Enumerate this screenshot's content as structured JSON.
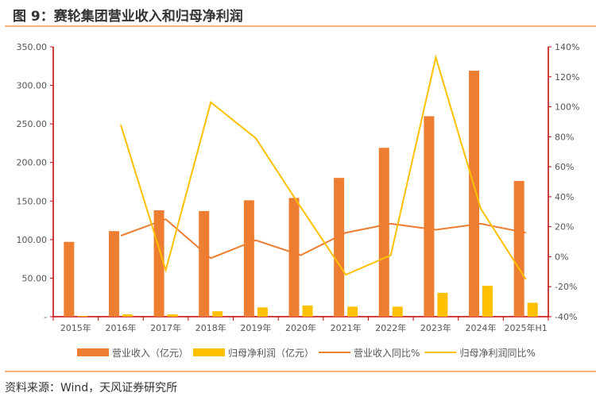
{
  "header": {
    "title": "图 9：赛轮集团营业收入和归母净利润"
  },
  "footer": {
    "source": "资料来源：Wind，天风证券研究所"
  },
  "colors": {
    "revenue": "#ed7d31",
    "profit": "#ffc000",
    "axis": "#c00000"
  },
  "chart_data": {
    "type": "bar",
    "title": "赛轮集团营业收入和归母净利润",
    "categories": [
      "2015年",
      "2016年",
      "2017年",
      "2018年",
      "2019年",
      "2020年",
      "2021年",
      "2022年",
      "2023年",
      "2024年",
      "2025年H1"
    ],
    "left_axis": {
      "ylim": [
        0,
        350
      ],
      "ticks": [
        "-",
        "50.00",
        "100.00",
        "150.00",
        "200.00",
        "250.00",
        "300.00",
        "350.00"
      ]
    },
    "right_axis": {
      "ylim": [
        -40,
        140
      ],
      "ticks": [
        "-40%",
        "-20%",
        "0%",
        "20%",
        "40%",
        "60%",
        "80%",
        "100%",
        "120%",
        "140%"
      ]
    },
    "series": [
      {
        "name": "营业收入（亿元）",
        "type": "bar",
        "axis": "left",
        "values": [
          97,
          111,
          138,
          137,
          151,
          154,
          180,
          219,
          260,
          319,
          176
        ]
      },
      {
        "name": "归母净利润（亿元）",
        "type": "bar",
        "axis": "left",
        "values": [
          1,
          3,
          3,
          7,
          12,
          14.5,
          13,
          13,
          31,
          40,
          18
        ]
      },
      {
        "name": "营业收入同比%",
        "type": "line",
        "axis": "right",
        "values": [
          null,
          14,
          25,
          -1,
          11,
          1,
          16,
          22,
          18,
          22,
          16
        ]
      },
      {
        "name": "归母净利润同比%",
        "type": "line",
        "axis": "right",
        "values": [
          null,
          88,
          -9,
          103,
          79,
          33,
          -12,
          1,
          133,
          32,
          -15
        ]
      }
    ],
    "legend": "bottom",
    "grid": false
  }
}
